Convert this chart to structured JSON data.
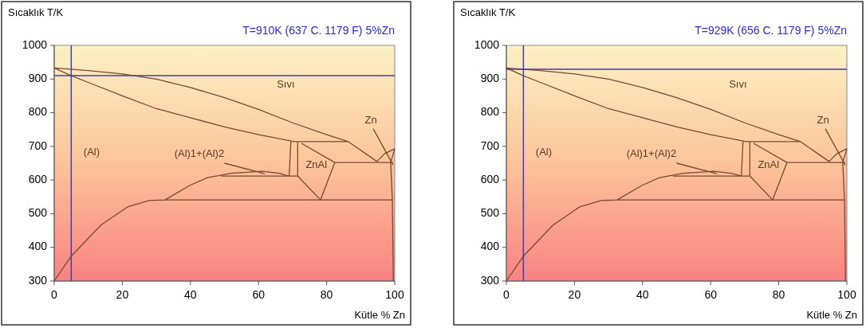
{
  "chart_data": [
    {
      "type": "line",
      "subtitle": "T=910K (637 C. 1179 F)  5%Zn",
      "xlabel": "Kütle  % Zn",
      "ylabel": "Sıcaklık T/K",
      "xlim": [
        0,
        100
      ],
      "xticks": [
        0,
        20,
        40,
        60,
        80,
        100
      ],
      "ylim": [
        300,
        1000
      ],
      "yticks": [
        300,
        400,
        500,
        600,
        700,
        800,
        900,
        1000
      ],
      "grid": false,
      "marker": "none",
      "line_style": "solid",
      "series": [
        {
          "color": "#7a4a30",
          "x": [
            86.4,
            70.5,
            60,
            50,
            40,
            30,
            20,
            10,
            5,
            0,
            10,
            20,
            30,
            40,
            50,
            60,
            70,
            80,
            86.4,
            94.8,
            97,
            100
          ],
          "values": [
            714,
            714,
            735,
            758,
            785,
            812,
            850,
            890,
            910,
            933,
            925,
            915,
            900,
            875,
            845,
            810,
            770,
            735,
            714,
            655,
            678,
            693
          ]
        },
        {
          "color": "#7a4a30",
          "x": [
            69.5,
            69
          ],
          "values": [
            714,
            612
          ]
        },
        {
          "color": "#7a4a30",
          "x": [
            71.5,
            71.5
          ],
          "values": [
            714,
            612
          ]
        },
        {
          "color": "#7a4a30",
          "x": [
            0,
            5,
            13.7,
            21.5,
            27.8,
            32.5,
            40,
            45,
            52,
            61,
            66,
            69
          ],
          "values": [
            300,
            374,
            466,
            520,
            539,
            541,
            585,
            607,
            620,
            626,
            620,
            612
          ]
        },
        {
          "color": "#7a4a30",
          "x": [
            49,
            71.5
          ],
          "values": [
            612,
            612
          ]
        },
        {
          "color": "#7a4a30",
          "x": [
            32.5,
            99.3
          ],
          "values": [
            541,
            541
          ]
        },
        {
          "color": "#7a4a30",
          "x": [
            71.5,
            78.2,
            82.4
          ],
          "values": [
            612,
            541,
            652
          ]
        },
        {
          "color": "#7a4a30",
          "x": [
            72.6,
            82.4
          ],
          "values": [
            709,
            652
          ]
        },
        {
          "color": "#7a4a30",
          "x": [
            82.4,
            99.5
          ],
          "values": [
            652,
            652
          ]
        },
        {
          "color": "#7a4a30",
          "x": [
            100,
            98.8,
            99.3,
            99.6
          ],
          "values": [
            693,
            652,
            541,
            300
          ]
        },
        {
          "color": "#7a4a30",
          "x": [
            50,
            61.8
          ],
          "values": [
            650,
            619
          ]
        },
        {
          "color": "#7a4a30",
          "x": [
            93.7,
            99.5
          ],
          "values": [
            752,
            645
          ]
        }
      ],
      "ref_lines": [
        {
          "axis": "x",
          "value": 5,
          "color": "#3c3cc0"
        },
        {
          "axis": "y",
          "value": 910,
          "color": "#3c3cc0"
        }
      ],
      "annotations": [
        "Sıvı",
        "(Al)",
        "(Al)1+(Al)2",
        "ZnAl",
        "Zn"
      ]
    },
    {
      "type": "line",
      "subtitle": "T=929K (656 C. 1179 F)  5%Zn",
      "xlabel": "Kütle  % Zn",
      "ylabel": "Sıcaklık T/K",
      "xlim": [
        0,
        100
      ],
      "xticks": [
        0,
        20,
        40,
        60,
        80,
        100
      ],
      "ylim": [
        300,
        1000
      ],
      "yticks": [
        300,
        400,
        500,
        600,
        700,
        800,
        900,
        1000
      ],
      "grid": false,
      "marker": "none",
      "line_style": "solid",
      "series": [
        {
          "color": "#7a4a30",
          "x": [
            86.4,
            70.5,
            60,
            50,
            40,
            30,
            20,
            10,
            5,
            0,
            10,
            20,
            30,
            40,
            50,
            60,
            70,
            80,
            86.4,
            94.8,
            97,
            100
          ],
          "values": [
            714,
            714,
            735,
            758,
            785,
            812,
            850,
            890,
            910,
            933,
            925,
            915,
            900,
            875,
            845,
            810,
            770,
            735,
            714,
            655,
            678,
            693
          ]
        },
        {
          "color": "#7a4a30",
          "x": [
            69.5,
            69
          ],
          "values": [
            714,
            612
          ]
        },
        {
          "color": "#7a4a30",
          "x": [
            71.5,
            71.5
          ],
          "values": [
            714,
            612
          ]
        },
        {
          "color": "#7a4a30",
          "x": [
            0,
            5,
            13.7,
            21.5,
            27.8,
            32.5,
            40,
            45,
            52,
            61,
            66,
            69
          ],
          "values": [
            300,
            374,
            466,
            520,
            539,
            541,
            585,
            607,
            620,
            626,
            620,
            612
          ]
        },
        {
          "color": "#7a4a30",
          "x": [
            49,
            71.5
          ],
          "values": [
            612,
            612
          ]
        },
        {
          "color": "#7a4a30",
          "x": [
            32.5,
            99.3
          ],
          "values": [
            541,
            541
          ]
        },
        {
          "color": "#7a4a30",
          "x": [
            71.5,
            78.2,
            82.4
          ],
          "values": [
            612,
            541,
            652
          ]
        },
        {
          "color": "#7a4a30",
          "x": [
            72.6,
            82.4
          ],
          "values": [
            709,
            652
          ]
        },
        {
          "color": "#7a4a30",
          "x": [
            82.4,
            99.5
          ],
          "values": [
            652,
            652
          ]
        },
        {
          "color": "#7a4a30",
          "x": [
            100,
            98.8,
            99.3,
            99.6
          ],
          "values": [
            693,
            652,
            541,
            300
          ]
        },
        {
          "color": "#7a4a30",
          "x": [
            50,
            61.8
          ],
          "values": [
            650,
            619
          ]
        },
        {
          "color": "#7a4a30",
          "x": [
            93.7,
            99.5
          ],
          "values": [
            752,
            645
          ]
        }
      ],
      "ref_lines": [
        {
          "axis": "x",
          "value": 5,
          "color": "#3c3cc0"
        },
        {
          "axis": "y",
          "value": 929,
          "color": "#3c3cc0"
        }
      ],
      "annotations": [
        "Sıvı",
        "(Al)",
        "(Al)1+(Al)2",
        "ZnAl",
        "Zn"
      ]
    }
  ]
}
